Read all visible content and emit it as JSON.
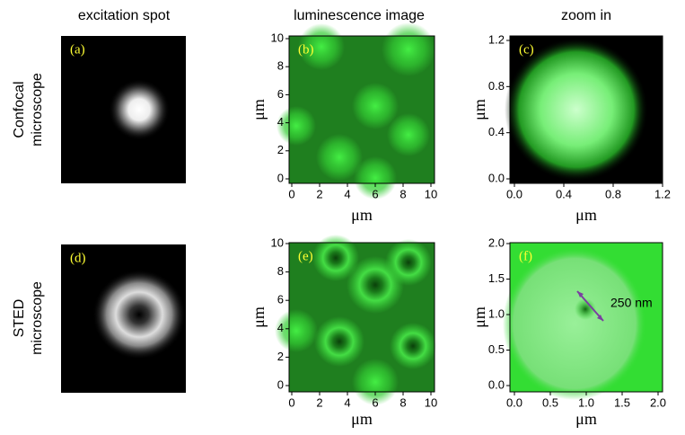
{
  "headers": [
    "excitation spot",
    "luminescence image",
    "zoom in"
  ],
  "rows": [
    [
      "Confocal",
      "microscope"
    ],
    [
      "STED",
      "microscope"
    ]
  ],
  "panels": [
    {
      "label": "(a)"
    },
    {
      "label": "(b)",
      "xlabel": "μm",
      "ylabel": "μm",
      "xlim": [
        0,
        10
      ],
      "ylim": [
        0,
        10
      ],
      "xticks": [
        0,
        2,
        4,
        6,
        8,
        10
      ],
      "yticks": [
        0,
        2,
        4,
        6,
        8,
        10
      ]
    },
    {
      "label": "(c)",
      "xlabel": "μm",
      "ylabel": "μm",
      "xlim": [
        0,
        1.2
      ],
      "ylim": [
        0,
        1.2
      ],
      "xticks": [
        {
          "value": 0,
          "label": "0.0"
        },
        0.4,
        0.8,
        1.2
      ],
      "yticks": [
        {
          "value": 0,
          "label": "0.0"
        },
        0.4,
        0.8,
        1.2
      ]
    },
    {
      "label": "(d)"
    },
    {
      "label": "(e)",
      "xlabel": "μm",
      "ylabel": "μm",
      "xlim": [
        0,
        10
      ],
      "ylim": [
        0,
        10
      ],
      "xticks": [
        0,
        2,
        4,
        6,
        8,
        10
      ],
      "yticks": [
        0,
        2,
        4,
        6,
        8,
        10
      ]
    },
    {
      "label": "(f)",
      "xlabel": "μm",
      "ylabel": "μm",
      "xlim": [
        0,
        2
      ],
      "ylim": [
        0,
        2
      ],
      "xticks": [
        {
          "value": 0,
          "label": "0.0"
        },
        0.5,
        {
          "value": 1,
          "label": "1.0"
        },
        1.5,
        {
          "value": 2,
          "label": "2.0"
        }
      ],
      "yticks": [
        {
          "value": 0,
          "label": "0.0"
        },
        0.5,
        {
          "value": 1,
          "label": "1.0"
        },
        1.5,
        {
          "value": 2,
          "label": "2.0"
        }
      ]
    }
  ],
  "annotation": "250 nm"
}
